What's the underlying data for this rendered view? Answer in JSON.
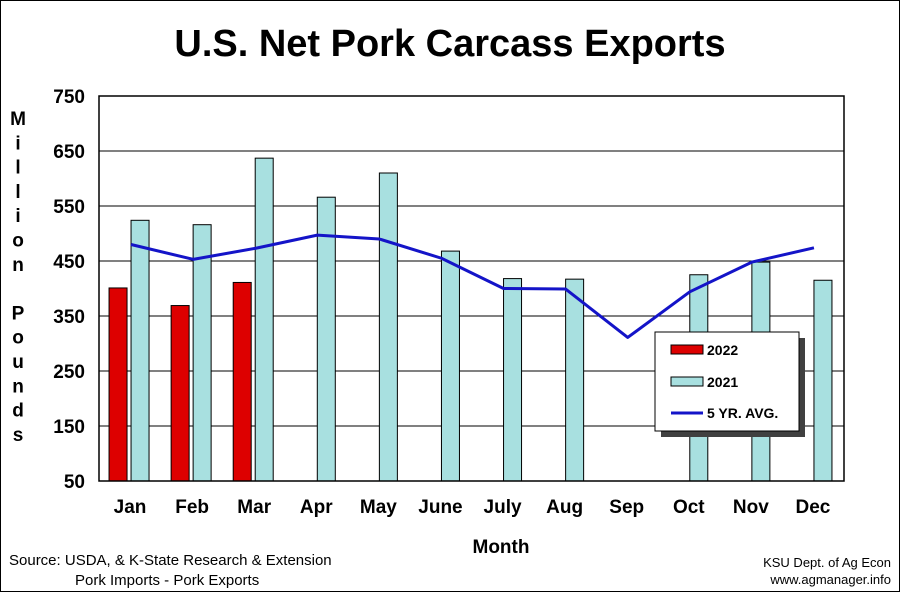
{
  "chart_data": {
    "type": "bar",
    "title": "U.S. Net Pork Carcass Exports",
    "xlabel": "Month",
    "ylabel": "Million Pounds",
    "ylim": [
      50,
      750
    ],
    "yticks": [
      50,
      150,
      250,
      350,
      450,
      550,
      650,
      750
    ],
    "grid": true,
    "legend_position": "right",
    "categories": [
      "Jan",
      "Feb",
      "Mar",
      "Apr",
      "May",
      "June",
      "July",
      "Aug",
      "Sep",
      "Oct",
      "Nov",
      "Dec"
    ],
    "series": [
      {
        "name": "2022",
        "kind": "bar",
        "color": "#dd0000",
        "values": [
          401,
          369,
          411,
          null,
          null,
          null,
          null,
          null,
          null,
          null,
          null,
          null
        ]
      },
      {
        "name": "2021",
        "kind": "bar",
        "color": "#a8e0e0",
        "values": [
          524,
          516,
          637,
          566,
          610,
          468,
          418,
          417,
          null,
          425,
          448,
          415
        ]
      },
      {
        "name": "5 YR. AVG.",
        "kind": "line",
        "color": "#1414c8",
        "values": [
          480,
          453,
          473,
          497,
          490,
          455,
          400,
          399,
          311,
          394,
          448,
          474
        ]
      }
    ]
  },
  "footer": {
    "source_line1": "Source:  USDA, & K-State Research & Extension",
    "source_line2": "Pork Imports - Pork Exports",
    "credit_line1": "KSU Dept. of Ag Econ",
    "credit_line2": "www.agmanager.info"
  }
}
